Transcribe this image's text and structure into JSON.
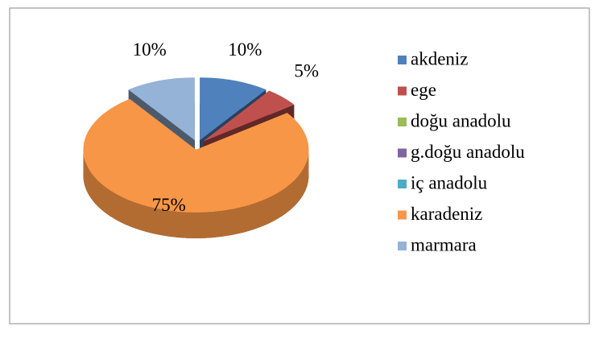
{
  "chart_data": {
    "type": "pie",
    "categories": [
      "akdeniz",
      "ege",
      "doğu anadolu",
      "g.doğu anadolu",
      "iç anadolu",
      "karadeniz",
      "marmara"
    ],
    "values": [
      10,
      5,
      0,
      0,
      0,
      75,
      10
    ],
    "value_labels": [
      "10%",
      "5%",
      null,
      null,
      null,
      "75%",
      "10%"
    ],
    "colors": [
      "#4f81bd",
      "#c0504d",
      "#9bbb59",
      "#8064a2",
      "#4bacc6",
      "#f79646",
      "#95b3d7"
    ],
    "legend": "right"
  }
}
